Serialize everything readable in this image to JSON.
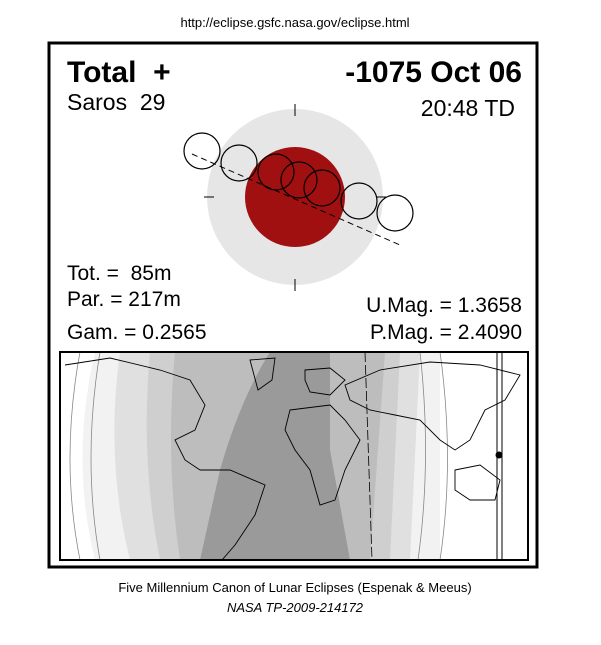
{
  "header": {
    "url": "http://eclipse.gsfc.nasa.gov/eclipse.html"
  },
  "eclipse": {
    "type": "Total  +",
    "date": "-1075 Oct 06",
    "saros": "Saros  29",
    "time": "20:48 TD",
    "total_duration": "Tot. =  85m",
    "partial_duration": "Par. = 217m",
    "gamma": "Gam. = 0.2565",
    "umbral_magnitude": "U.Mag. = 1.3658",
    "penumbral_magnitude": "P.Mag. = 2.4090"
  },
  "footer": {
    "canon": "Five Millennium Canon of Lunar Eclipses (Espenak & Meeus)",
    "reference": "NASA TP-2009-214172"
  }
}
